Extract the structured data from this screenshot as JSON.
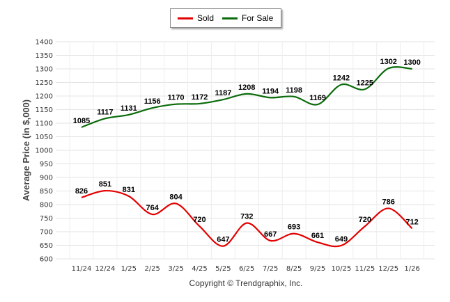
{
  "chart_data": {
    "type": "line",
    "title": "",
    "xlabel": "",
    "ylabel": "Average Price (in $,000)",
    "ylim": [
      600,
      1400
    ],
    "yticks": [
      600,
      650,
      700,
      750,
      800,
      850,
      900,
      950,
      1000,
      1050,
      1100,
      1150,
      1200,
      1250,
      1300,
      1350,
      1400
    ],
    "grid": true,
    "legend_position": "top-center",
    "categories": [
      "11/24",
      "12/24",
      "1/25",
      "2/25",
      "3/25",
      "4/25",
      "5/25",
      "6/25",
      "7/25",
      "8/25",
      "9/25",
      "10/25",
      "11/25",
      "12/25",
      "1/26"
    ],
    "series": [
      {
        "name": "Sold",
        "color": "#e30000",
        "values": [
          826,
          851,
          831,
          764,
          804,
          720,
          647,
          732,
          667,
          693,
          661,
          649,
          720,
          786,
          712
        ]
      },
      {
        "name": "For Sale",
        "color": "#0a6b0a",
        "values": [
          1085,
          1117,
          1131,
          1156,
          1170,
          1172,
          1187,
          1208,
          1194,
          1198,
          1169,
          1242,
          1225,
          1302,
          1300
        ]
      }
    ]
  },
  "legend": {
    "sold_label": "Sold",
    "for_sale_label": "For Sale"
  },
  "footer": {
    "copyright": "Copyright © Trendgraphix, Inc."
  }
}
